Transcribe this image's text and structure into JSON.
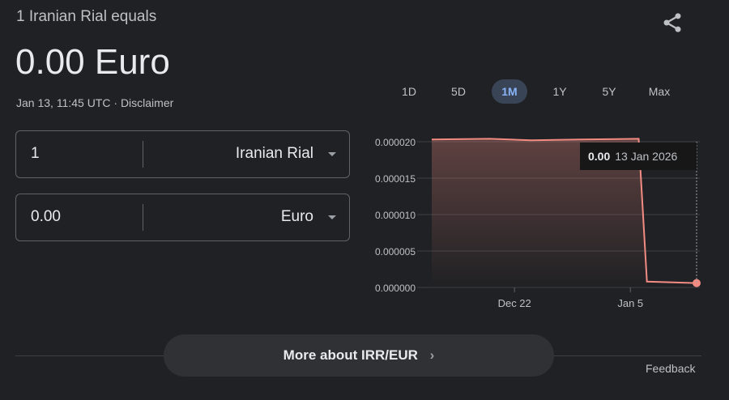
{
  "header": {
    "subtitle": "1 Iranian Rial equals",
    "result": "0.00 Euro",
    "timestamp": "Jan 13, 11:45 UTC",
    "separator": "·",
    "disclaimer": "Disclaimer",
    "share_icon": "share-icon"
  },
  "converter": {
    "from": {
      "value": "1",
      "currency": "Iranian Rial"
    },
    "to": {
      "value": "0.00",
      "currency": "Euro"
    }
  },
  "ranges": [
    {
      "label": "1D"
    },
    {
      "label": "5D"
    },
    {
      "label": "1M",
      "selected": true
    },
    {
      "label": "1Y"
    },
    {
      "label": "5Y"
    },
    {
      "label": "Max"
    }
  ],
  "tooltip": {
    "value": "0.00",
    "date": "13 Jan 2026"
  },
  "chart_data": {
    "type": "area",
    "line_color": "#f28b82",
    "ylim": [
      0,
      2e-05
    ],
    "yticks": [
      "0.000020",
      "0.000015",
      "0.000010",
      "0.000005",
      "0.000000"
    ],
    "ytick_values": [
      2e-05,
      1.5e-05,
      1e-05,
      5e-06,
      0
    ],
    "xticks": [
      {
        "label": "Dec 22",
        "date": "2025-12-22"
      },
      {
        "label": "Jan 5",
        "date": "2026-01-05"
      }
    ],
    "xlim": [
      "2025-12-12",
      "2026-01-13"
    ],
    "points": [
      {
        "date": "2025-12-12",
        "value": 2.03e-05
      },
      {
        "date": "2025-12-19",
        "value": 2.04e-05
      },
      {
        "date": "2025-12-24",
        "value": 2.02e-05
      },
      {
        "date": "2025-12-30",
        "value": 2.03e-05
      },
      {
        "date": "2026-01-06",
        "value": 2.04e-05
      },
      {
        "date": "2026-01-07",
        "value": 8e-07
      },
      {
        "date": "2026-01-13",
        "value": 6e-07
      }
    ],
    "grid": true
  },
  "footer": {
    "more": "More about IRR/EUR",
    "feedback": "Feedback"
  }
}
